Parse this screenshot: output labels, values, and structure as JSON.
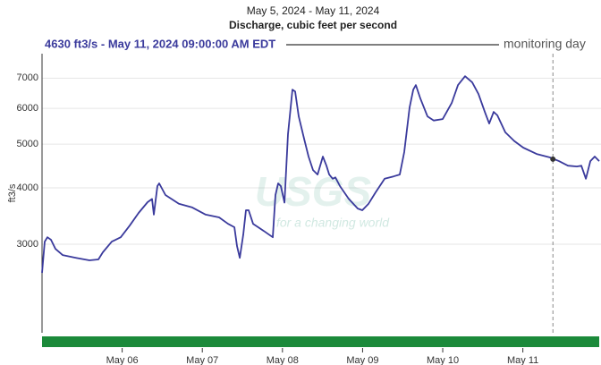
{
  "chart_data": {
    "type": "line",
    "title": "May 5, 2024 - May 11, 2024",
    "subtitle": "Discharge, cubic feet per second",
    "header": "4630 ft3/s - May 11, 2024 09:00:00 AM EDT",
    "legend_label": "monitoring day",
    "y_label": "ft3/s",
    "watermark": "USGS",
    "watermark_tagline": "for a changing world",
    "log_y": true,
    "grid": true,
    "xlim": [
      5,
      11.975
    ],
    "xticks": [
      {
        "value": 6,
        "label": "May 06"
      },
      {
        "value": 7,
        "label": "May 07"
      },
      {
        "value": 8,
        "label": "May 08"
      },
      {
        "value": 9,
        "label": "May 09"
      },
      {
        "value": 10,
        "label": "May 10"
      },
      {
        "value": 11,
        "label": "May 11"
      }
    ],
    "ylim": [
      1910,
      7930
    ],
    "yticks": [
      3000,
      4000,
      5000,
      6000,
      7000
    ],
    "current": {
      "x": 11.375,
      "value": 4630
    },
    "series": [
      {
        "name": "Discharge",
        "color": "#3a3a9c",
        "x": [
          5.0,
          5.033,
          5.067,
          5.112,
          5.167,
          5.257,
          5.424,
          5.592,
          5.703,
          5.759,
          5.871,
          5.982,
          6.094,
          6.205,
          6.317,
          6.373,
          6.395,
          6.44,
          6.462,
          6.54,
          6.708,
          6.875,
          7.042,
          7.21,
          7.321,
          7.4,
          7.433,
          7.467,
          7.511,
          7.545,
          7.578,
          7.634,
          7.768,
          7.879,
          7.913,
          7.946,
          7.98,
          8.025,
          8.069,
          8.125,
          8.158,
          8.203,
          8.27,
          8.326,
          8.382,
          8.438,
          8.471,
          8.504,
          8.549,
          8.583,
          8.627,
          8.661,
          8.717,
          8.828,
          8.94,
          8.996,
          9.074,
          9.163,
          9.275,
          9.386,
          9.464,
          9.52,
          9.587,
          9.632,
          9.665,
          9.721,
          9.81,
          9.888,
          10.0,
          10.112,
          10.19,
          10.279,
          10.368,
          10.446,
          10.525,
          10.58,
          10.636,
          10.681,
          10.781,
          10.893,
          11.004,
          11.172,
          11.339,
          11.451,
          11.562,
          11.674,
          11.73,
          11.786,
          11.842,
          11.897,
          11.953
        ],
        "values": [
          2593,
          3040,
          3110,
          3070,
          2930,
          2840,
          2800,
          2764,
          2777,
          2880,
          3040,
          3110,
          3300,
          3520,
          3718,
          3780,
          3490,
          4036,
          4093,
          3856,
          3690,
          3620,
          3490,
          3441,
          3330,
          3272,
          2974,
          2800,
          3150,
          3569,
          3569,
          3330,
          3210,
          3110,
          3856,
          4093,
          4036,
          3710,
          5260,
          6600,
          6540,
          5760,
          5140,
          4692,
          4380,
          4281,
          4480,
          4692,
          4480,
          4281,
          4190,
          4220,
          4036,
          3780,
          3600,
          3569,
          3690,
          3910,
          4190,
          4240,
          4281,
          4800,
          6030,
          6600,
          6755,
          6310,
          5760,
          5640,
          5680,
          6168,
          6755,
          7070,
          6850,
          6454,
          5892,
          5553,
          5892,
          5790,
          5310,
          5080,
          4911,
          4756,
          4670,
          4585,
          4480,
          4460,
          4480,
          4190,
          4585,
          4692,
          4585
        ]
      }
    ]
  }
}
